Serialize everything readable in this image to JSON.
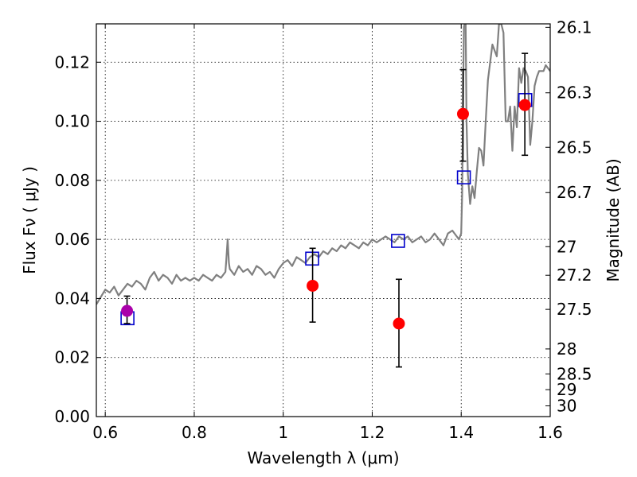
{
  "chart_data": {
    "type": "scatter",
    "xlabel": "Wavelength  λ (μm)",
    "ylabel": "Flux  Fν  ( μJy )",
    "y2label": "Magnitude (AB)",
    "xlim": [
      0.58,
      1.6
    ],
    "ylim": [
      0.0,
      0.133
    ],
    "grid": true,
    "x_ticks": [
      0.6,
      0.8,
      1.0,
      1.2,
      1.4,
      1.6
    ],
    "x_tick_labels": [
      "0.6",
      "0.8",
      "1",
      "1.2",
      "1.4",
      "1.6"
    ],
    "y_ticks": [
      0.0,
      0.02,
      0.04,
      0.06,
      0.08,
      0.1,
      0.12
    ],
    "y_tick_labels": [
      "0.00",
      "0.02",
      "0.04",
      "0.06",
      "0.08",
      "0.10",
      "0.12"
    ],
    "mag_tick_labels": [
      "26.1",
      "26.3",
      "26.5",
      "26.7",
      "27",
      "27.2",
      "27.5",
      "28",
      "28.5",
      "29",
      "30"
    ],
    "colors": {
      "model": "#808080",
      "observed": "#ff0000",
      "model_photometry": "#0000cc",
      "highlight": "#aa00aa",
      "errorbar": "#000000"
    },
    "series": [
      {
        "kind": "line",
        "x": [
          0.58,
          0.6,
          0.61,
          0.62,
          0.63,
          0.64,
          0.65,
          0.66,
          0.67,
          0.68,
          0.69,
          0.7,
          0.71,
          0.72,
          0.73,
          0.74,
          0.75,
          0.76,
          0.77,
          0.78,
          0.79,
          0.8,
          0.81,
          0.82,
          0.83,
          0.84,
          0.85,
          0.86,
          0.87,
          0.872,
          0.875,
          0.878,
          0.88,
          0.89,
          0.9,
          0.91,
          0.92,
          0.93,
          0.94,
          0.95,
          0.96,
          0.97,
          0.98,
          0.99,
          1.0,
          1.01,
          1.02,
          1.03,
          1.04,
          1.05,
          1.06,
          1.07,
          1.08,
          1.09,
          1.1,
          1.11,
          1.12,
          1.13,
          1.14,
          1.15,
          1.16,
          1.17,
          1.18,
          1.19,
          1.2,
          1.21,
          1.22,
          1.23,
          1.24,
          1.25,
          1.26,
          1.27,
          1.28,
          1.29,
          1.3,
          1.31,
          1.32,
          1.33,
          1.34,
          1.35,
          1.36,
          1.37,
          1.38,
          1.39,
          1.395,
          1.4,
          1.402,
          1.404,
          1.406,
          1.408,
          1.41,
          1.412,
          1.415,
          1.42,
          1.425,
          1.43,
          1.435,
          1.44,
          1.445,
          1.45,
          1.455,
          1.46,
          1.465,
          1.47,
          1.475,
          1.48,
          1.485,
          1.49,
          1.495,
          1.5,
          1.505,
          1.51,
          1.515,
          1.52,
          1.525,
          1.53,
          1.535,
          1.54,
          1.545,
          1.55,
          1.555,
          1.56,
          1.565,
          1.57,
          1.575,
          1.58,
          1.585,
          1.59,
          1.6
        ],
        "y": [
          0.038,
          0.043,
          0.042,
          0.044,
          0.041,
          0.043,
          0.045,
          0.044,
          0.046,
          0.045,
          0.043,
          0.047,
          0.049,
          0.046,
          0.048,
          0.047,
          0.045,
          0.048,
          0.046,
          0.047,
          0.046,
          0.047,
          0.046,
          0.048,
          0.047,
          0.046,
          0.048,
          0.047,
          0.049,
          0.053,
          0.06,
          0.052,
          0.05,
          0.048,
          0.051,
          0.049,
          0.05,
          0.048,
          0.051,
          0.05,
          0.048,
          0.049,
          0.047,
          0.05,
          0.052,
          0.053,
          0.051,
          0.054,
          0.053,
          0.052,
          0.054,
          0.055,
          0.054,
          0.056,
          0.055,
          0.057,
          0.056,
          0.058,
          0.057,
          0.059,
          0.058,
          0.057,
          0.059,
          0.058,
          0.06,
          0.059,
          0.06,
          0.061,
          0.06,
          0.059,
          0.061,
          0.06,
          0.061,
          0.059,
          0.06,
          0.061,
          0.059,
          0.06,
          0.062,
          0.06,
          0.058,
          0.062,
          0.063,
          0.061,
          0.06,
          0.062,
          0.075,
          0.105,
          0.132,
          0.133,
          0.133,
          0.1,
          0.082,
          0.072,
          0.078,
          0.074,
          0.083,
          0.091,
          0.09,
          0.085,
          0.1,
          0.114,
          0.12,
          0.126,
          0.124,
          0.122,
          0.133,
          0.133,
          0.13,
          0.1,
          0.1,
          0.105,
          0.09,
          0.105,
          0.098,
          0.118,
          0.113,
          0.118,
          0.117,
          0.115,
          0.092,
          0.1,
          0.112,
          0.115,
          0.117,
          0.117,
          0.117,
          0.119,
          0.117
        ]
      },
      {
        "kind": "points",
        "marker": "circle",
        "x": [
          0.649,
          1.066,
          1.26,
          1.404,
          1.543
        ],
        "y": [
          0.0358,
          0.0443,
          0.0315,
          0.1025,
          0.1055
        ],
        "yerr_low": [
          0.0315,
          0.032,
          0.0168,
          0.0865,
          0.0885
        ],
        "yerr_high": [
          0.0408,
          0.057,
          0.0465,
          0.1175,
          0.123
        ]
      },
      {
        "kind": "points",
        "marker": "open-square",
        "x": [
          0.65,
          1.065,
          1.258,
          1.406,
          1.544
        ],
        "y": [
          0.0333,
          0.0535,
          0.0595,
          0.081,
          0.1072
        ]
      }
    ]
  }
}
